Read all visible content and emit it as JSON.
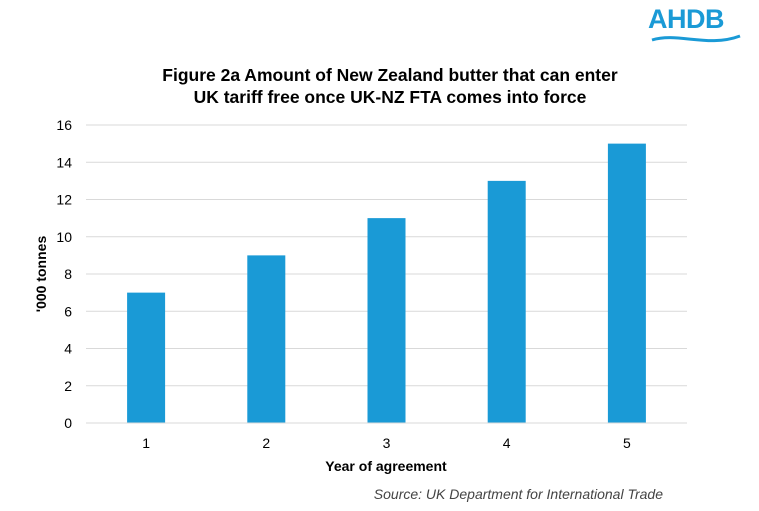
{
  "logo": {
    "text": "AHDB",
    "color": "#1a9ad6"
  },
  "source": "Source: UK Department for International Trade",
  "chart_data": {
    "type": "bar",
    "title_lines": [
      "Figure 2a  Amount of New Zealand butter that can enter",
      "UK tariff free once UK-NZ FTA comes into force"
    ],
    "categories": [
      "1",
      "2",
      "3",
      "4",
      "5"
    ],
    "values": [
      7,
      9,
      11,
      13,
      15
    ],
    "xlabel": "Year of agreement",
    "ylabel": "'000 tonnes",
    "ylim": [
      0,
      16
    ],
    "yticks": [
      "0",
      "2",
      "4",
      "6",
      "8",
      "10",
      "12",
      "14",
      "16"
    ],
    "grid": true,
    "legend": "none",
    "bar_color": "#1a9ad6"
  }
}
